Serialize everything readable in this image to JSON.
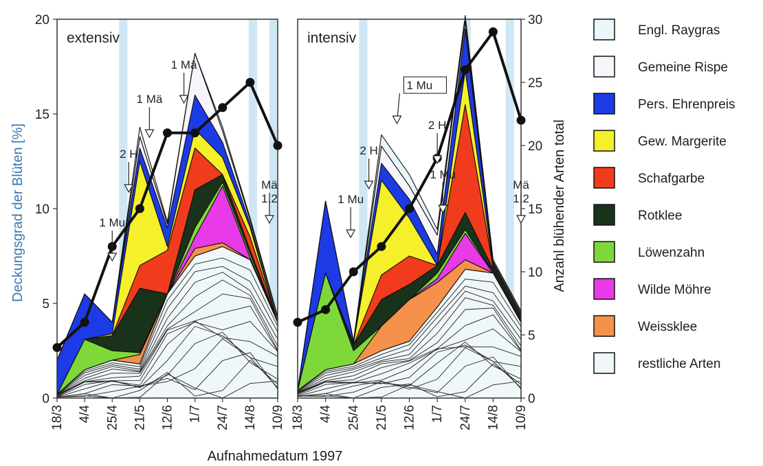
{
  "chart_data": {
    "type": "area",
    "xlabel": "Aufnahmedatum 1997",
    "ylabel_left": "Deckungsgrad der Blüten [%]",
    "ylabel_right": "Anzahl blühender Arten total",
    "ylim_left": [
      0,
      20
    ],
    "ylim_right": [
      0,
      30
    ],
    "yticks_left": [
      "0",
      "5",
      "10",
      "15",
      "20"
    ],
    "yticks_right": [
      "0",
      "5",
      "10",
      "15",
      "20",
      "25",
      "30"
    ],
    "categories": [
      "18/3",
      "4/4",
      "25/4",
      "21/5",
      "12/6",
      "1/7",
      "24/7",
      "14/8",
      "10/9"
    ],
    "legend": [
      {
        "name": "Engl. Raygras",
        "color": "#eaf6fa"
      },
      {
        "name": "Gemeine Rispe",
        "color": "#f8f4fb"
      },
      {
        "name": "Pers. Ehrenpreis",
        "color": "#1c3be6"
      },
      {
        "name": "Gew. Margerite",
        "color": "#f5f02a"
      },
      {
        "name": "Schafgarbe",
        "color": "#f03c1c"
      },
      {
        "name": "Rotklee",
        "color": "#19321a"
      },
      {
        "name": "Löwenzahn",
        "color": "#7ed83a"
      },
      {
        "name": "Wilde Möhre",
        "color": "#e83ae6"
      },
      {
        "name": "Weissklee",
        "color": "#f5914a"
      },
      {
        "name": "restliche Arten",
        "color": "#f0f7f9"
      }
    ],
    "panels": [
      {
        "title": "extensiv",
        "dates": [
          0,
          1,
          2,
          3,
          4,
          5,
          6,
          7,
          8
        ],
        "cumulative_tops": {
          "restliche Arten": [
            0.2,
            1.5,
            2.0,
            1.8,
            5.5,
            7.5,
            8.0,
            7.3,
            4.0
          ],
          "Weissklee": [
            0.2,
            1.5,
            2.0,
            2.3,
            5.5,
            7.9,
            8.2,
            7.3,
            4.0
          ],
          "Wilde Möhre": [
            0.2,
            1.5,
            2.0,
            2.3,
            5.5,
            8.5,
            11.2,
            7.4,
            4.0
          ],
          "Löwenzahn": [
            0.2,
            3.1,
            2.5,
            2.4,
            5.5,
            9.0,
            11.4,
            7.6,
            4.0
          ],
          "Rotklee": [
            0.2,
            3.1,
            3.3,
            5.8,
            5.5,
            11.0,
            11.8,
            7.8,
            4.0
          ],
          "Schafgarbe": [
            0.2,
            3.1,
            3.3,
            7.0,
            7.8,
            13.2,
            11.8,
            8.5,
            4.0
          ],
          "Gew. Margerite": [
            0.2,
            3.1,
            3.4,
            12.5,
            8.0,
            14.2,
            12.7,
            9.0,
            4.0
          ],
          "Pers. Ehrenpreis": [
            2.0,
            5.5,
            4.0,
            13.2,
            9.0,
            16.0,
            13.5,
            9.2,
            4.0
          ],
          "Gemeine Rispe": [
            2.0,
            5.5,
            4.0,
            13.8,
            9.2,
            18.2,
            14.1,
            9.4,
            4.2
          ],
          "Engl. Raygras": [
            2.0,
            5.5,
            4.0,
            14.3,
            9.3,
            18.2,
            14.3,
            9.5,
            4.3
          ]
        },
        "total_species": [
          4,
          6,
          12,
          15,
          21,
          21,
          23,
          25,
          20
        ],
        "annotations": [
          {
            "text": "1 Mu",
            "date": 2
          },
          {
            "text": "2 H",
            "date": 2.6
          },
          {
            "text": "1 Mä",
            "date": 3.35
          },
          {
            "text": "1 Mä",
            "date": 4.6
          },
          {
            "text": "1,2",
            "date": 7.7
          },
          {
            "text": "Mä",
            "date": 7.7
          }
        ]
      },
      {
        "title": "intensiv",
        "dates": [
          0,
          1,
          2,
          3,
          4,
          5,
          6,
          7,
          8
        ],
        "cumulative_tops": {
          "restliche Arten": [
            0.4,
            1.5,
            1.8,
            2.5,
            3.0,
            4.8,
            6.8,
            6.6,
            4.0
          ],
          "Weissklee": [
            0.4,
            1.5,
            1.8,
            3.8,
            5.2,
            6.1,
            7.3,
            6.6,
            4.0
          ],
          "Wilde Möhre": [
            0.4,
            1.5,
            1.8,
            3.8,
            5.2,
            6.3,
            8.7,
            6.6,
            4.0
          ],
          "Löwenzahn": [
            0.4,
            6.6,
            2.5,
            3.8,
            5.2,
            6.6,
            8.9,
            6.6,
            4.0
          ],
          "Rotklee": [
            0.4,
            6.6,
            2.8,
            5.2,
            6.0,
            7.0,
            9.8,
            6.8,
            4.1
          ],
          "Schafgarbe": [
            0.4,
            6.6,
            2.8,
            6.5,
            7.5,
            7.0,
            15.5,
            6.9,
            4.2
          ],
          "Gew. Margerite": [
            0.4,
            6.6,
            2.9,
            11.5,
            9.5,
            7.0,
            17.3,
            7.0,
            4.3
          ],
          "Pers. Ehrenpreis": [
            0.4,
            10.4,
            3.0,
            12.4,
            10.5,
            7.6,
            19.5,
            7.1,
            4.4
          ],
          "Gemeine Rispe": [
            0.4,
            10.4,
            3.0,
            13.3,
            11.2,
            8.6,
            19.9,
            7.2,
            4.5
          ],
          "Engl. Raygras": [
            0.4,
            10.4,
            3.0,
            13.9,
            11.8,
            8.9,
            20.2,
            7.3,
            4.6
          ]
        },
        "total_species": [
          6,
          7,
          10,
          12,
          15,
          19,
          26,
          29,
          22
        ],
        "annotations": [
          {
            "text": "1 Mu",
            "date": 1.9
          },
          {
            "text": "2 H",
            "date": 2.55
          },
          {
            "text": "1 Mu",
            "date": 3.9
          },
          {
            "text": "2 H",
            "date": 5.0
          },
          {
            "text": "1 Mu",
            "date": 5.2
          },
          {
            "text": "1,2",
            "date": 8.0
          },
          {
            "text": "Mä",
            "date": 8.0
          }
        ]
      }
    ],
    "grid": false,
    "legend_position": "right"
  }
}
